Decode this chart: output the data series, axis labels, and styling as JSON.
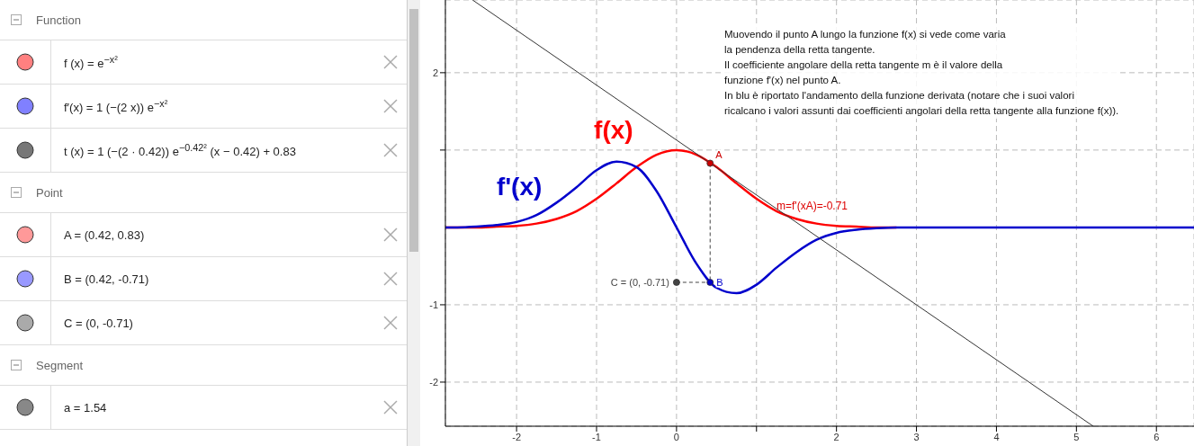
{
  "chart_data": [
    {
      "type": "other",
      "title": "Function",
      "annotations": [
        "f (x) = e$^{−x²}$",
        "f′(x) = 1 (−(2 x)) e$^{−x²}$",
        "t (x) = 1 (−(2 · 0.42)) e$^{−0.42²}$ (x − 0.42) + 0.83"
      ]
    },
    {
      "type": "other",
      "title": "Point",
      "annotations": [
        "A = (0.42, 0.83)",
        "B = (0.42, -0.71)",
        "C = (0, -0.71)"
      ]
    },
    {
      "type": "other",
      "title": "Segment",
      "annotations": [
        "a = 1.54"
      ]
    },
    {
      "type": "line",
      "xlim": [
        -2.89,
        6.47
      ],
      "ylim": [
        -2.57,
        2.94
      ],
      "xticks": [
        -2,
        -1,
        0,
        {
          "value": 1,
          "label": null
        },
        2,
        3,
        4,
        5,
        6
      ],
      "yticks": [
        -2,
        -1,
        {
          "value": 1,
          "label": null
        },
        2
      ],
      "grid": true,
      "annotations": [
        "Muovendo il punto A lungo la funzione f(x) si vede come varia\nla pendenza della retta tangente.\nIl coefficiente angolare della retta tangente m è il valore della\nfunzione f'(x) nel punto A.\nIn blu è riportato l'andamento della funzione derivata (notare che i suoi valori\nricalcano i valori assunti dai coefficienti angolari della retta tangente alla funzione f(x)).",
        "m=f'(xA)=-0.71"
      ],
      "series": [
        {
          "name": "f(x)",
          "type": "line",
          "color": "#ff0000",
          "marker": "none",
          "line_style": "solid",
          "x": [
            -2.89,
            -2.75,
            -2.5,
            -2.25,
            -2,
            -1.75,
            -1.5,
            -1.25,
            -1,
            -0.75,
            -0.5,
            -0.25,
            0,
            0.25,
            0.5,
            0.75,
            1,
            1.25,
            1.5,
            1.75,
            2,
            2.25,
            2.5,
            2.75
          ],
          "values": [
            0,
            0,
            0,
            0.01,
            0.02,
            0.05,
            0.11,
            0.21,
            0.37,
            0.57,
            0.78,
            0.94,
            1,
            0.94,
            0.78,
            0.57,
            0.37,
            0.21,
            0.11,
            0.05,
            0.02,
            0.01,
            0,
            0
          ]
        },
        {
          "name": "f'(x)",
          "type": "line",
          "color": "#0000cc",
          "marker": "none",
          "line_style": "solid",
          "x": [
            -2.89,
            -2.75,
            -2.5,
            -2.25,
            -2,
            -1.75,
            -1.5,
            -1.25,
            -1,
            -0.75,
            -0.5,
            -0.25,
            0,
            0.25,
            0.5,
            0.75,
            1,
            1.25,
            1.5,
            1.75,
            2,
            2.25,
            2.5,
            2.75,
            3,
            6.47
          ],
          "values": [
            0,
            0,
            0.01,
            0.03,
            0.07,
            0.16,
            0.32,
            0.52,
            0.74,
            0.85,
            0.78,
            0.47,
            0,
            -0.47,
            -0.78,
            -0.85,
            -0.74,
            -0.52,
            -0.32,
            -0.16,
            -0.07,
            -0.03,
            -0.01,
            0,
            0,
            0
          ]
        },
        {
          "type": "line",
          "color": "#333333",
          "marker": "none",
          "line_style": "solid",
          "x": [
            -2.55,
            5.21
          ],
          "values": [
            2.94,
            -2.57
          ]
        },
        {
          "type": "line",
          "color": "#444444",
          "marker": "none",
          "line_style": "dashed",
          "x": [
            0.42,
            0.42
          ],
          "values": [
            0.83,
            -0.71
          ]
        },
        {
          "type": "line",
          "color": "#444444",
          "marker": "none",
          "line_style": "dashed",
          "x": [
            0,
            0.42
          ],
          "values": [
            -0.71,
            -0.71
          ]
        },
        {
          "name": "A",
          "type": "scatter",
          "color": "#cc0000",
          "marker": "circle",
          "x": [
            0.42
          ],
          "values": [
            0.83
          ]
        },
        {
          "name": "B",
          "type": "scatter",
          "color": "#0000cc",
          "marker": "circle",
          "x": [
            0.42
          ],
          "values": [
            -0.71
          ]
        },
        {
          "name": "C = (0, -0.71)",
          "type": "scatter",
          "color": "#444444",
          "marker": "circle",
          "x": [
            0
          ],
          "values": [
            -0.71
          ]
        }
      ]
    }
  ]
}
